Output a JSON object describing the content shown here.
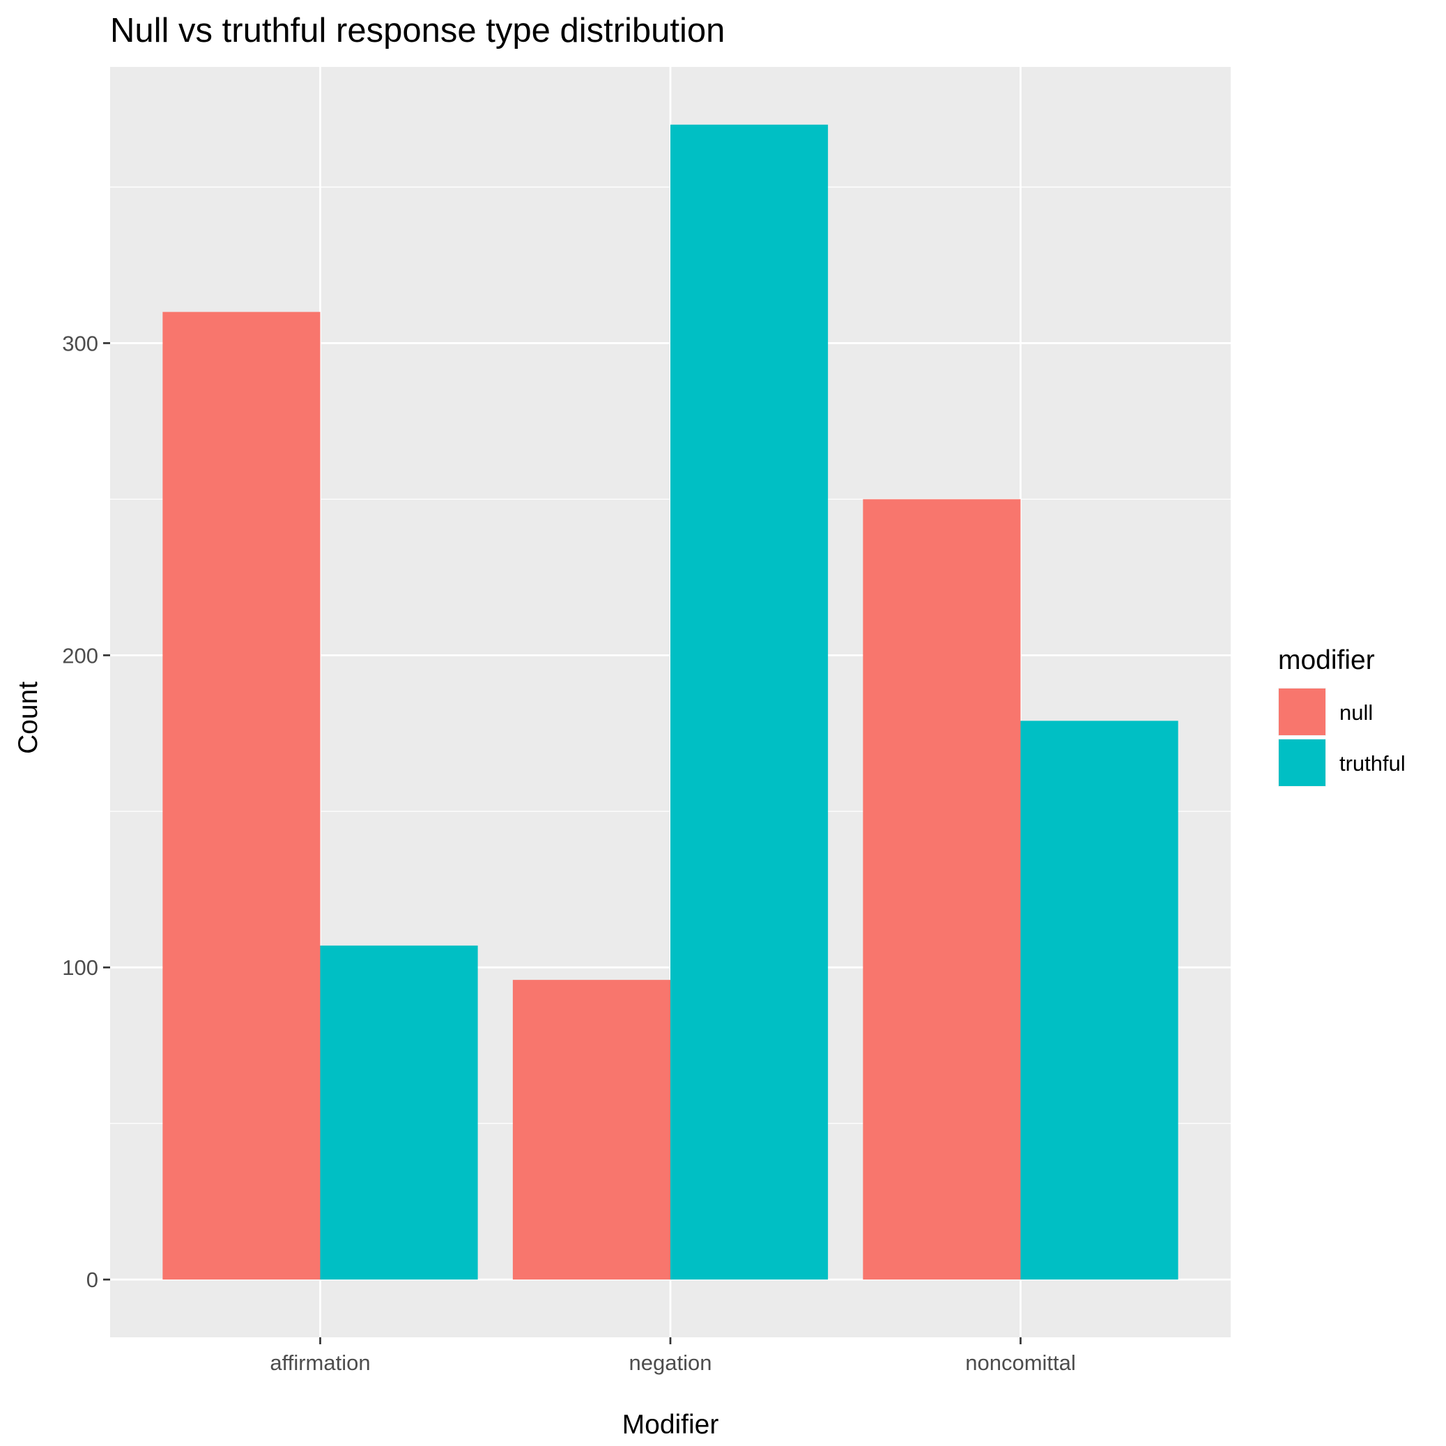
{
  "chart_data": {
    "type": "bar",
    "title": "Null vs truthful response type distribution",
    "xlabel": "Modifier",
    "ylabel": "Count",
    "categories": [
      "affirmation",
      "negation",
      "noncomittal"
    ],
    "series": [
      {
        "name": "null",
        "color": "#F8766D",
        "values": [
          310,
          96,
          250
        ]
      },
      {
        "name": "truthful",
        "color": "#00BFC4",
        "values": [
          107,
          370,
          179
        ]
      }
    ],
    "ylim": [
      -18.5,
      388.5
    ],
    "yticks": [
      0,
      100,
      200,
      300
    ],
    "grid": true,
    "legend": {
      "title": "modifier",
      "position": "right"
    },
    "colors": {
      "panel_background": "#EBEBEB",
      "grid": "#FFFFFF",
      "tick": "#333333"
    }
  }
}
